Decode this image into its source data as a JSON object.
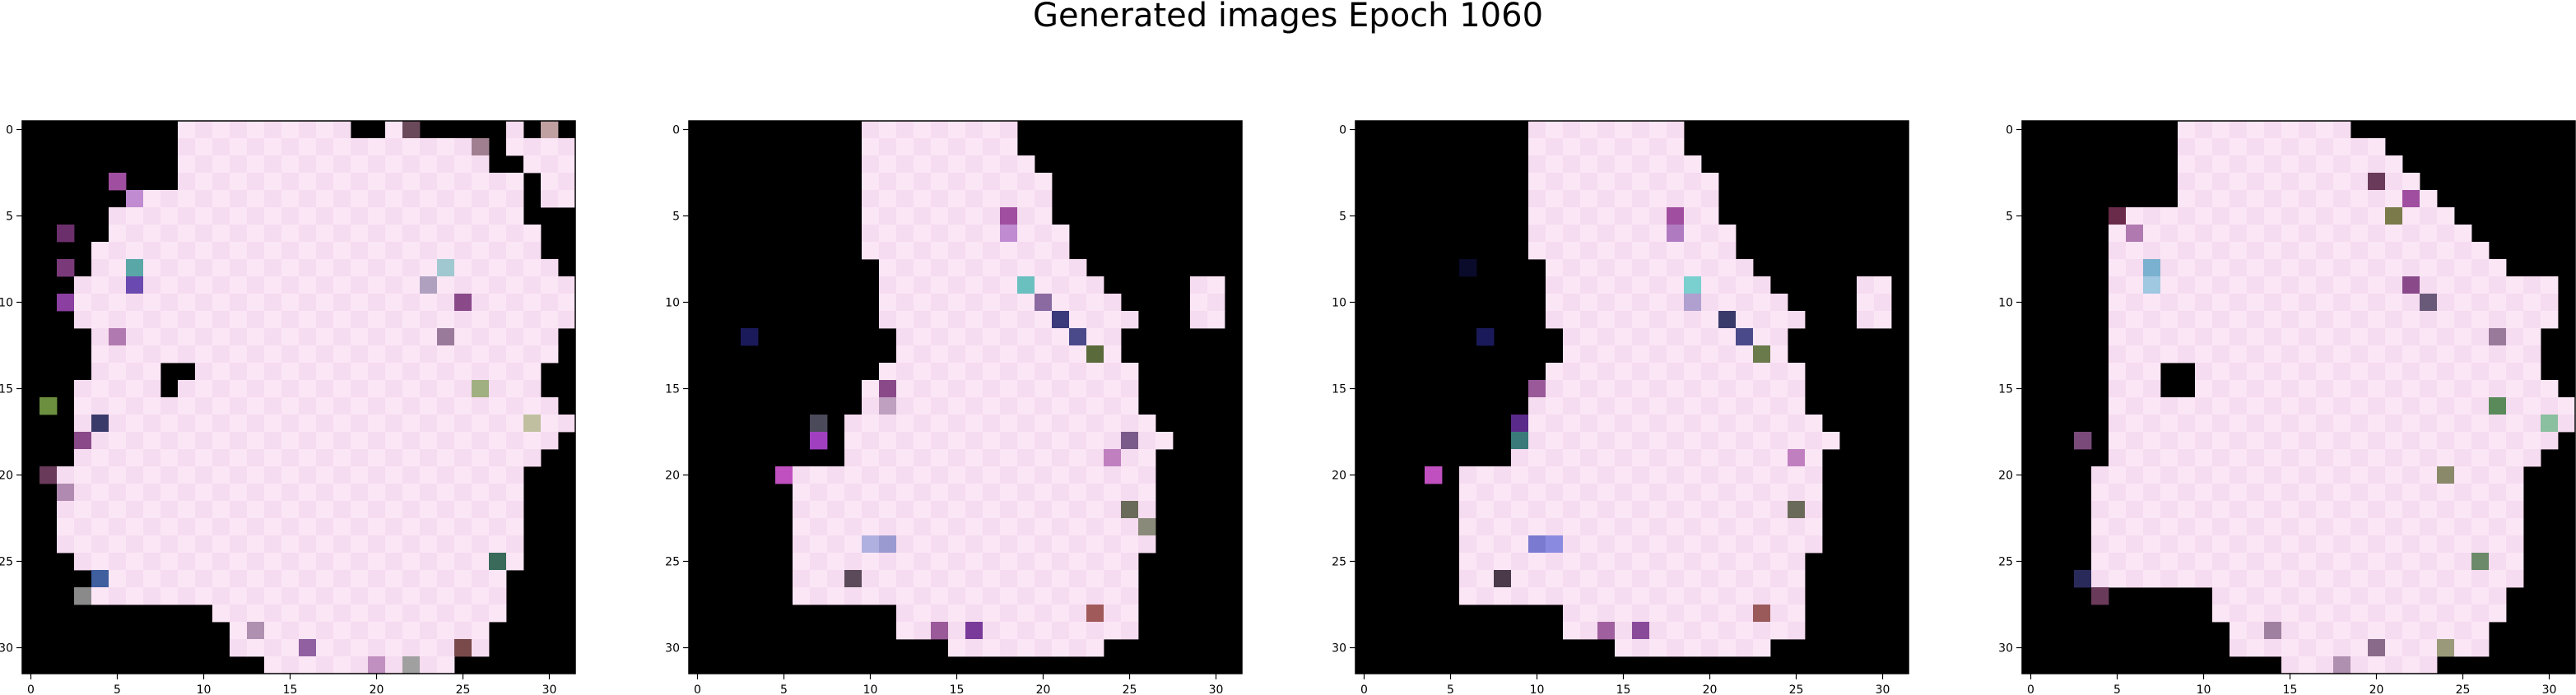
{
  "figure": {
    "suptitle": "Generated images Epoch 1060",
    "background": "#ffffff"
  },
  "chart_data": [
    {
      "type": "heatmap",
      "title": "",
      "image_shape": [
        32,
        32
      ],
      "xticks": [
        0,
        5,
        10,
        15,
        20,
        25,
        30
      ],
      "yticks": [
        0,
        5,
        10,
        15,
        20,
        25,
        30
      ],
      "xlim": [
        -0.5,
        31.5
      ],
      "ylim": [
        31.5,
        -0.5
      ],
      "colors": {
        "background": "#000000",
        "fill": "#f6dcf0",
        "checker": "#fbe6f6"
      },
      "mask_rows": [
        "00000000011111111110010000001010",
        "00000000011111111111111111101111",
        "00000000011111111111111111100111",
        "00000000011111111111111111111011",
        "00000011111111111111111111111011",
        "00000111111111111111111111111000",
        "00000111111111111111111111111100",
        "00001111111111111111111111111100",
        "00001111111111111111111111111110",
        "00011111111111111111111111111111",
        "00011111111111111111111111111111",
        "00011111111111111111111111111111",
        "00001111111111111111111111111110",
        "00001111111111111111111111111110",
        "00001111111111111111111111111100",
        "00011111111111111111111111111100",
        "00011111111111111111111111111110",
        "00011111111111111111111111111111",
        "00011111111111111111111111111110",
        "00011111111111111111111111111100",
        "00111111111111111111111111111000",
        "00111111111111111111111111111000",
        "00111111111111111111111111111000",
        "00111111111111111111111111111000",
        "00111111111111111111111111111000",
        "00011111111111111111111111111000",
        "00001111111111111111111111110000",
        "00001111111111111111111111110000",
        "00000000000111111111111111110000",
        "00000000000011111111111111100000",
        "00000000000011111111111111100000",
        "00000000000000111111111110000000"
      ],
      "accents": [
        [
          3,
          5,
          "#a04fa0"
        ],
        [
          4,
          6,
          "#c08bd0"
        ],
        [
          6,
          2,
          "#6b2f6b"
        ],
        [
          8,
          2,
          "#7a3a7a"
        ],
        [
          8,
          6,
          "#5aa7a7"
        ],
        [
          9,
          6,
          "#6a4ab0"
        ],
        [
          10,
          2,
          "#8b3fa0"
        ],
        [
          12,
          5,
          "#b07ab0"
        ],
        [
          14,
          8,
          "#000000"
        ],
        [
          14,
          9,
          "#000000"
        ],
        [
          15,
          8,
          "#000000"
        ],
        [
          16,
          1,
          "#6b8f3f"
        ],
        [
          17,
          4,
          "#3a3a6a"
        ],
        [
          18,
          3,
          "#8a4a8a"
        ],
        [
          20,
          1,
          "#6a3a5a"
        ],
        [
          21,
          2,
          "#b08ab0"
        ],
        [
          25,
          27,
          "#3a6a5a"
        ],
        [
          26,
          4,
          "#3f5f9f"
        ],
        [
          27,
          3,
          "#8a8a8a"
        ],
        [
          8,
          24,
          "#a0c8d0"
        ],
        [
          9,
          23,
          "#b0a0c0"
        ],
        [
          10,
          25,
          "#8a4a8a"
        ],
        [
          12,
          24,
          "#9a7a9a"
        ],
        [
          15,
          26,
          "#a0b080"
        ],
        [
          17,
          29,
          "#c0c0a0"
        ],
        [
          29,
          13,
          "#b090b0"
        ],
        [
          30,
          16,
          "#9060a0"
        ],
        [
          31,
          20,
          "#c090c0"
        ],
        [
          31,
          22,
          "#a0a0a0"
        ],
        [
          30,
          25,
          "#7a4a4a"
        ],
        [
          0,
          22,
          "#6a4a5a"
        ],
        [
          1,
          26,
          "#a08090"
        ],
        [
          0,
          30,
          "#c0a0a0"
        ]
      ]
    },
    {
      "type": "heatmap",
      "title": "",
      "image_shape": [
        32,
        32
      ],
      "xticks": [
        0,
        5,
        10,
        15,
        20,
        25,
        30
      ],
      "yticks": [
        0,
        5,
        10,
        15,
        20,
        25,
        30
      ],
      "xlim": [
        -0.5,
        31.5
      ],
      "ylim": [
        31.5,
        -0.5
      ],
      "colors": {
        "background": "#000000",
        "fill": "#f6dcf0",
        "checker": "#fbe6f6"
      },
      "mask_rows": [
        "00000000001111111110000000000000",
        "00000000001111111110000000000000",
        "00000000001111111111000000000000",
        "00000000001111111111100000000000",
        "00000000001111111111100000000000",
        "00000000001111111111100000000000",
        "00000000001111111111110000000000",
        "00000000001111111111110000000000",
        "00000000000111111111111000000000",
        "00000000000111111111111100000110",
        "00000000000111111111111110000110",
        "00000000000111111111111111000110",
        "00000000000011111111111110000000",
        "00000000000011111111111110000000",
        "00000000000111111111111111000000",
        "00000000001111111111111111000000",
        "00000000001111111111111111000000",
        "00000000011111111111111111100000",
        "00000000011111111111111111110000",
        "00000000011111111111111111100000",
        "00000011111111111111111111100000",
        "00000011111111111111111111100000",
        "00000011111111111111111111100000",
        "00000011111111111111111111100000",
        "00000011111111111111111111100000",
        "00000011111111111111111111000000",
        "00000011111111111111111111000000",
        "00000011111111111111111111000000",
        "00000000000011111111111111000000",
        "00000000000011111111111111000000",
        "00000000000000011111111100000000",
        "00000000000000000000000000000000"
      ],
      "accents": [
        [
          5,
          18,
          "#a04fa0"
        ],
        [
          6,
          18,
          "#c08bd0"
        ],
        [
          9,
          19,
          "#6abfbf"
        ],
        [
          10,
          20,
          "#8a6aa0"
        ],
        [
          11,
          21,
          "#3a3a7a"
        ],
        [
          12,
          22,
          "#4a4a8a"
        ],
        [
          13,
          23,
          "#5a6a3a"
        ],
        [
          15,
          11,
          "#8a4a8a"
        ],
        [
          16,
          11,
          "#c0a0c0"
        ],
        [
          17,
          7,
          "#4a4a5a"
        ],
        [
          18,
          7,
          "#a040c0"
        ],
        [
          18,
          25,
          "#7a5a8a"
        ],
        [
          19,
          24,
          "#c080c0"
        ],
        [
          20,
          5,
          "#c050c0"
        ],
        [
          24,
          11,
          "#9a9ad0"
        ],
        [
          24,
          10,
          "#b0b0e0"
        ],
        [
          26,
          9,
          "#5a4a5a"
        ],
        [
          29,
          16,
          "#7a3a9a"
        ],
        [
          29,
          14,
          "#9a5a9a"
        ],
        [
          28,
          23,
          "#a05a5a"
        ],
        [
          22,
          25,
          "#6a6a5a"
        ],
        [
          23,
          26,
          "#8a8a7a"
        ],
        [
          12,
          3,
          "#1a1a5a"
        ]
      ]
    },
    {
      "type": "heatmap",
      "title": "",
      "image_shape": [
        32,
        32
      ],
      "xticks": [
        0,
        5,
        10,
        15,
        20,
        25,
        30
      ],
      "yticks": [
        0,
        5,
        10,
        15,
        20,
        25,
        30
      ],
      "xlim": [
        -0.5,
        31.5
      ],
      "ylim": [
        31.5,
        -0.5
      ],
      "colors": {
        "background": "#000000",
        "fill": "#f6dcf0",
        "checker": "#fbe6f6"
      },
      "mask_rows": [
        "00000000001111111110000000000000",
        "00000000001111111110000000000000",
        "00000000001111111111000000000000",
        "00000000001111111111100000000000",
        "00000000001111111111100000000000",
        "00000000001111111111100000000000",
        "00000000001111111111110000000000",
        "00000000001111111111110000000000",
        "00000000000111111111111000000000",
        "00000000000111111111111100000110",
        "00000000000111111111111110000110",
        "00000000000111111111111111000110",
        "00000000000011111111111110000000",
        "00000000000011111111111110000000",
        "00000000000111111111111111000000",
        "00000000001111111111111111000000",
        "00000000001111111111111111000000",
        "00000000011111111111111111100000",
        "00000000011111111111111111110000",
        "00000000011111111111111111100000",
        "00000011111111111111111111100000",
        "00000011111111111111111111100000",
        "00000011111111111111111111100000",
        "00000011111111111111111111100000",
        "00000011111111111111111111100000",
        "00000011111111111111111111000000",
        "00000011111111111111111111000000",
        "00000011111111111111111111000000",
        "00000000000011111111111111000000",
        "00000000000011111111111111000000",
        "00000000000000011111111100000000",
        "00000000000000000000000000000000"
      ],
      "accents": [
        [
          5,
          18,
          "#a04fa0"
        ],
        [
          6,
          18,
          "#b07ac0"
        ],
        [
          9,
          19,
          "#7acfcf"
        ],
        [
          10,
          19,
          "#b0a0d0"
        ],
        [
          11,
          21,
          "#3a3a6a"
        ],
        [
          12,
          22,
          "#4a4a8a"
        ],
        [
          13,
          23,
          "#6a7a4a"
        ],
        [
          15,
          10,
          "#9a5a9a"
        ],
        [
          17,
          9,
          "#5a2a8a"
        ],
        [
          18,
          9,
          "#3a7a7a"
        ],
        [
          19,
          25,
          "#c080c0"
        ],
        [
          20,
          4,
          "#c050c0"
        ],
        [
          24,
          10,
          "#7a7ad0"
        ],
        [
          24,
          11,
          "#8a8ae0"
        ],
        [
          26,
          8,
          "#4a3a4a"
        ],
        [
          29,
          14,
          "#a060a0"
        ],
        [
          29,
          16,
          "#8a4a9a"
        ],
        [
          28,
          23,
          "#9a5a5a"
        ],
        [
          22,
          25,
          "#6a6a5a"
        ],
        [
          12,
          7,
          "#1a1a5a"
        ],
        [
          8,
          6,
          "#0a0a2a"
        ]
      ]
    },
    {
      "type": "heatmap",
      "title": "",
      "image_shape": [
        32,
        32
      ],
      "xticks": [
        0,
        5,
        10,
        15,
        20,
        25,
        30
      ],
      "yticks": [
        0,
        5,
        10,
        15,
        20,
        25,
        30
      ],
      "xlim": [
        -0.5,
        31.5
      ],
      "ylim": [
        31.5,
        -0.5
      ],
      "colors": {
        "background": "#000000",
        "fill": "#f6dcf0",
        "checker": "#fbe6f6"
      },
      "mask_rows": [
        "00000000011111111110000000000000",
        "00000000011111111111100000000000",
        "00000000011111111111110000000000",
        "00000000011111111111111000000000",
        "00000000011111111111111100000000",
        "00000111111111111111111110000000",
        "00000111111111111111111111000000",
        "00000111111111111111111111100000",
        "00000111111111111111111111110000",
        "00000111111111111111111111111110",
        "00000111111111111111111111111110",
        "00000111111111111111111111111110",
        "00000111111111111111111111111100",
        "00000111111111111111111111111100",
        "00000111111111111111111111111100",
        "00000111111111111111111111111110",
        "00000111111111111111111111111111",
        "00000111111111111111111111111111",
        "00000111111111111111111111111110",
        "00000111111111111111111111111100",
        "00001111111111111111111111111000",
        "00001111111111111111111111111000",
        "00001111111111111111111111111000",
        "00001111111111111111111111111000",
        "00001111111111111111111111111000",
        "00001111111111111111111111111000",
        "00001111111111111111111111111000",
        "00000000000111111111111111110000",
        "00000000000111111111111111110000",
        "00000000000011111111111111100000",
        "00000000000011111111111111100000",
        "00000000000000011111111100000000"
      ],
      "accents": [
        [
          3,
          20,
          "#6a3a5a"
        ],
        [
          4,
          22,
          "#a04fa0"
        ],
        [
          5,
          21,
          "#7a7a4a"
        ],
        [
          5,
          5,
          "#6a2a4a"
        ],
        [
          6,
          6,
          "#b07ab0"
        ],
        [
          8,
          7,
          "#7ab0d0"
        ],
        [
          9,
          7,
          "#a0c8e0"
        ],
        [
          9,
          22,
          "#8a4a8a"
        ],
        [
          10,
          23,
          "#6a5a7a"
        ],
        [
          12,
          27,
          "#9a7a9a"
        ],
        [
          14,
          8,
          "#000000"
        ],
        [
          15,
          8,
          "#000000"
        ],
        [
          14,
          9,
          "#000000"
        ],
        [
          15,
          9,
          "#000000"
        ],
        [
          16,
          27,
          "#5a8a5a"
        ],
        [
          17,
          30,
          "#8abfa0"
        ],
        [
          18,
          3,
          "#7a4a7a"
        ],
        [
          20,
          24,
          "#8a8a6a"
        ],
        [
          25,
          26,
          "#6a8a6a"
        ],
        [
          26,
          3,
          "#2a2a5a"
        ],
        [
          27,
          4,
          "#6a3a5a"
        ],
        [
          29,
          14,
          "#a080a0"
        ],
        [
          30,
          20,
          "#8a6a8a"
        ],
        [
          30,
          24,
          "#9a9a7a"
        ],
        [
          31,
          18,
          "#b090b0"
        ]
      ]
    }
  ]
}
